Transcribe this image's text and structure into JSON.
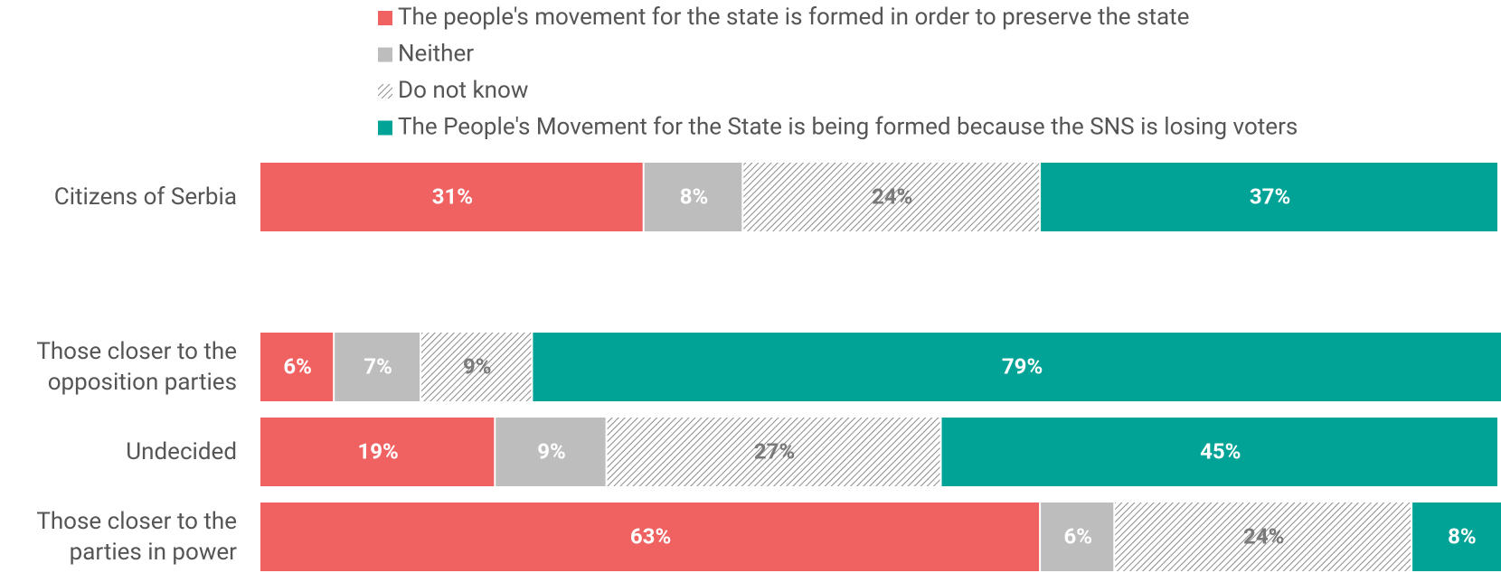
{
  "chart_data": {
    "type": "stacked-bar-horizontal",
    "categories": [
      "Citizens of Serbia",
      null,
      "Those closer to the opposition parties",
      "Undecided",
      "Those closer to the parties in power"
    ],
    "xlim": [
      0,
      100
    ],
    "series": [
      {
        "name": "The people's movement for the state is formed in order to preserve the state",
        "color": "#f06262",
        "label_color": "#ffffff",
        "values": [
          31,
          null,
          6,
          19,
          63
        ],
        "value_labels": [
          "31%",
          null,
          "6%",
          "19%",
          "63%"
        ]
      },
      {
        "name": "Neither",
        "color": "#bdbdbd",
        "label_color": "#ffffff",
        "values": [
          8,
          null,
          7,
          9,
          6
        ],
        "value_labels": [
          "8%",
          null,
          "7%",
          "9%",
          "6%"
        ]
      },
      {
        "name": "Do not know",
        "color": "#8a8a8a",
        "pattern": "hatch",
        "label_color": "#7a7a7a",
        "values": [
          24,
          null,
          9,
          27,
          24
        ],
        "value_labels": [
          "24%",
          null,
          "9%",
          "27%",
          "24%"
        ]
      },
      {
        "name": "The People's Movement for the State is being formed because the SNS is losing voters",
        "color": "#00a396",
        "label_color": "#ffffff",
        "values": [
          37,
          null,
          79,
          45,
          8
        ],
        "value_labels": [
          "37%",
          null,
          "79%",
          "45%",
          "8%"
        ]
      }
    ]
  }
}
